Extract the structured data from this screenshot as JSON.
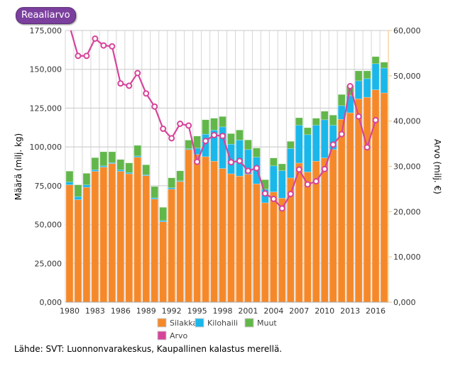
{
  "button": {
    "label": "Reaaliarvo"
  },
  "source": "Lähde: SVT: Luonnonvarakeskus, Kaupallinen kalastus merellä.",
  "chart_data": {
    "type": "bar",
    "stacked": true,
    "categories": [
      1980,
      1981,
      1982,
      1983,
      1984,
      1985,
      1986,
      1987,
      1988,
      1989,
      1990,
      1991,
      1992,
      1993,
      1994,
      1995,
      1996,
      1997,
      1998,
      1999,
      2000,
      2001,
      2002,
      2003,
      2004,
      2005,
      2006,
      2007,
      2008,
      2009,
      2010,
      2011,
      2012,
      2013,
      2014,
      2015,
      2016,
      2017
    ],
    "x_tick_labels": [
      "1980",
      "1983",
      "1986",
      "1989",
      "1992",
      "1995",
      "1998",
      "2001",
      "2004",
      "2007",
      "2010",
      "2013",
      "2016"
    ],
    "ylabel": "Määrä (milj. kg)",
    "y2label": "Arvo (milj. €)",
    "ylim": [
      0,
      175000
    ],
    "y2lim": [
      0,
      60000
    ],
    "y_tick_labels": [
      "0,000",
      "25,000",
      "50,000",
      "75,000",
      "100,000",
      "125,000",
      "150,000",
      "175,000"
    ],
    "y2_tick_labels": [
      "0,000",
      "10,000",
      "20,000",
      "30,000",
      "40,000",
      "50,000",
      "60,000"
    ],
    "grid": true,
    "legend_position": "bottom",
    "series": [
      {
        "name": "Silakka",
        "color": "#f5892a",
        "axis": "left",
        "kind": "bar",
        "values": [
          75600,
          66000,
          74000,
          84300,
          87000,
          89300,
          84300,
          82700,
          93400,
          81500,
          66400,
          51800,
          72800,
          77700,
          98300,
          95200,
          93700,
          90800,
          86100,
          82700,
          81200,
          82400,
          76200,
          64000,
          71000,
          67000,
          80000,
          89600,
          83800,
          90800,
          92900,
          98300,
          117800,
          122000,
          131000,
          132000,
          136800,
          134800
        ]
      },
      {
        "name": "Kilohaili",
        "color": "#1ab7ea",
        "axis": "left",
        "kind": "bar",
        "values": [
          1800,
          2000,
          1600,
          1000,
          800,
          600,
          1000,
          800,
          800,
          600,
          800,
          800,
          900,
          500,
          600,
          4000,
          14500,
          20000,
          26800,
          19100,
          23200,
          15900,
          17200,
          8800,
          16800,
          17700,
          19000,
          24400,
          24100,
          23200,
          24600,
          15700,
          8800,
          11000,
          11600,
          12000,
          16800,
          16000
        ]
      },
      {
        "name": "Muut",
        "color": "#62b74a",
        "axis": "left",
        "kind": "bar",
        "values": [
          7000,
          7600,
          7400,
          7800,
          9100,
          7000,
          6600,
          6200,
          6800,
          6400,
          7300,
          8500,
          6400,
          6400,
          5500,
          7800,
          9300,
          7700,
          6700,
          6800,
          6500,
          6200,
          5900,
          6100,
          5100,
          4400,
          4600,
          4800,
          4500,
          4500,
          5500,
          6500,
          7200,
          6400,
          6400,
          5000,
          4600,
          3800
        ]
      },
      {
        "name": "Arvo",
        "color": "#d6449a",
        "axis": "right",
        "kind": "line",
        "values": [
          61000,
          54400,
          54400,
          58200,
          56700,
          56500,
          48300,
          47800,
          50600,
          46100,
          43200,
          38300,
          36200,
          39400,
          39000,
          31000,
          35600,
          36900,
          36700,
          30900,
          31200,
          29000,
          29600,
          24000,
          22800,
          20700,
          23900,
          29300,
          26000,
          26700,
          29400,
          34800,
          37100,
          47700,
          41000,
          34200,
          40200,
          null
        ]
      }
    ]
  }
}
